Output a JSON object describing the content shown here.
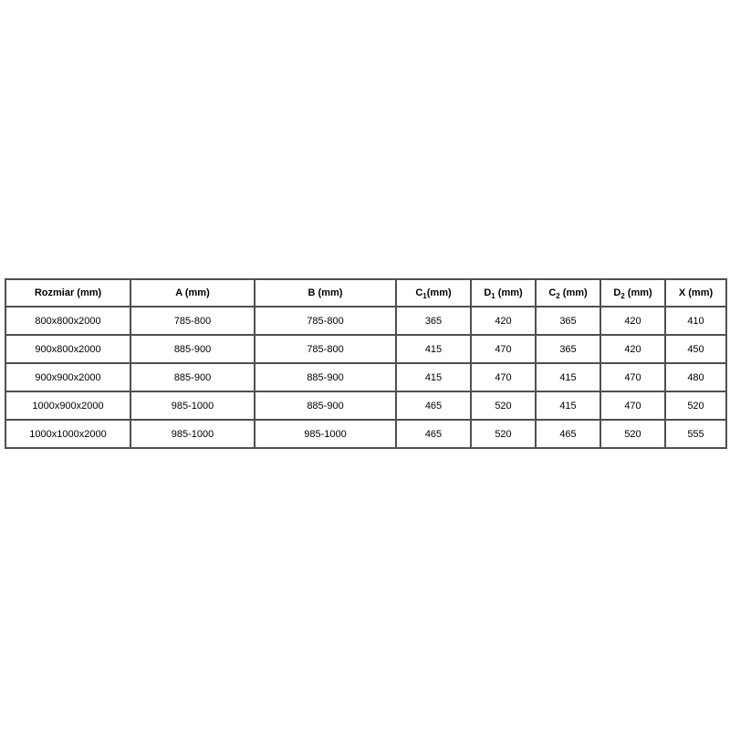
{
  "page": {
    "background_color": "#ffffff",
    "border_color": "#4f4f4f",
    "text_color": "#000000"
  },
  "table": {
    "headers": [
      {
        "pre": "Rozmiar (mm)",
        "sub": "",
        "post": ""
      },
      {
        "pre": "A (mm)",
        "sub": "",
        "post": ""
      },
      {
        "pre": "B (mm)",
        "sub": "",
        "post": ""
      },
      {
        "pre": "C",
        "sub": "1",
        "post": "(mm)"
      },
      {
        "pre": "D",
        "sub": "1",
        "post": " (mm)"
      },
      {
        "pre": "C",
        "sub": "2",
        "post": " (mm)"
      },
      {
        "pre": "D",
        "sub": "2",
        "post": " (mm)"
      },
      {
        "pre": "X (mm)",
        "sub": "",
        "post": ""
      }
    ],
    "rows": [
      [
        "800x800x2000",
        "785-800",
        "785-800",
        "365",
        "420",
        "365",
        "420",
        "410"
      ],
      [
        "900x800x2000",
        "885-900",
        "785-800",
        "415",
        "470",
        "365",
        "420",
        "450"
      ],
      [
        "900x900x2000",
        "885-900",
        "885-900",
        "415",
        "470",
        "415",
        "470",
        "480"
      ],
      [
        "1000x900x2000",
        "985-1000",
        "885-900",
        "465",
        "520",
        "415",
        "470",
        "520"
      ],
      [
        "1000x1000x2000",
        "985-1000",
        "985-1000",
        "465",
        "520",
        "465",
        "520",
        "555"
      ]
    ]
  },
  "chart_data": {
    "type": "table",
    "title": "",
    "columns": [
      "Rozmiar (mm)",
      "A (mm)",
      "B (mm)",
      "C1(mm)",
      "D1 (mm)",
      "C2 (mm)",
      "D2 (mm)",
      "X (mm)"
    ],
    "rows": [
      [
        "800x800x2000",
        "785-800",
        "785-800",
        365,
        420,
        365,
        420,
        410
      ],
      [
        "900x800x2000",
        "885-900",
        "785-800",
        415,
        470,
        365,
        420,
        450
      ],
      [
        "900x900x2000",
        "885-900",
        "885-900",
        415,
        470,
        415,
        470,
        480
      ],
      [
        "1000x900x2000",
        "985-1000",
        "885-900",
        465,
        520,
        415,
        470,
        520
      ],
      [
        "1000x1000x2000",
        "985-1000",
        "985-1000",
        465,
        520,
        465,
        520,
        555
      ]
    ]
  }
}
